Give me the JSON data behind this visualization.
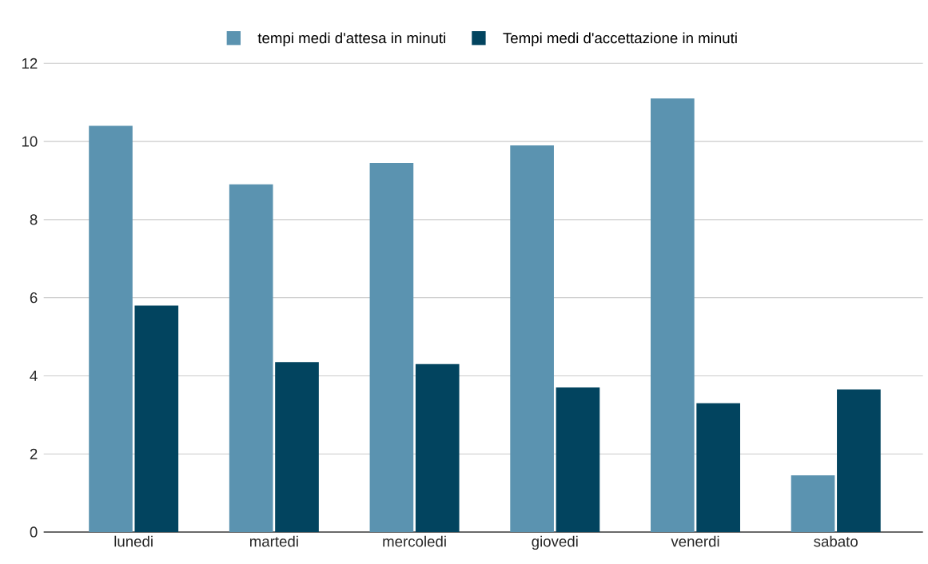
{
  "chart_data": {
    "type": "bar",
    "categories": [
      "lunedi",
      "martedi",
      "mercoledi",
      "giovedi",
      "venerdi",
      "sabato"
    ],
    "series": [
      {
        "name": "tempi medi d'attesa in minuti",
        "color": "#5b93b0",
        "values": [
          10.4,
          8.9,
          9.45,
          9.9,
          11.1,
          1.45
        ]
      },
      {
        "name": "Tempi medi d'accettazione in minuti",
        "color": "#02445f",
        "values": [
          5.8,
          4.35,
          4.3,
          3.7,
          3.3,
          3.65
        ]
      }
    ],
    "ylim": [
      0,
      12
    ],
    "yticks": [
      0,
      2,
      4,
      6,
      8,
      10,
      12
    ],
    "grid": "y",
    "legend": "top"
  }
}
